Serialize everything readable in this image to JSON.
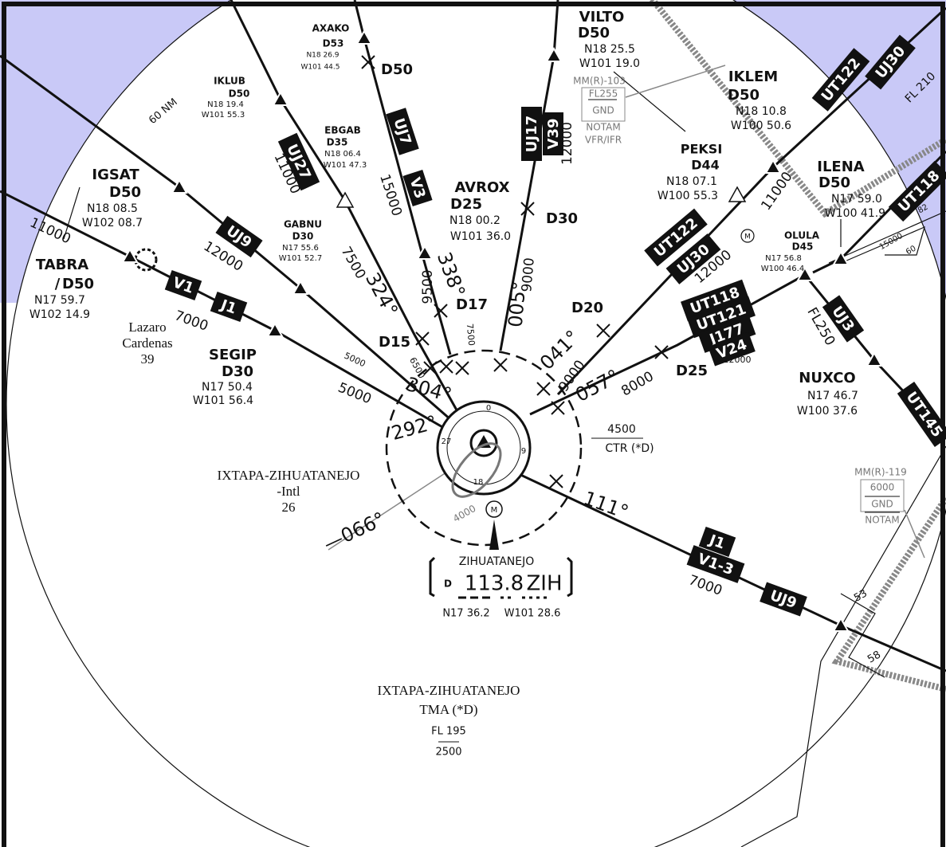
{
  "fixes": [
    {
      "name": "AXAKO",
      "dist": "D53",
      "lat": "N18 26.9",
      "lon": "W101 44.5"
    },
    {
      "name": "VILTO",
      "dist": "D50",
      "lat": "N18 25.5",
      "lon": "W101 19.0"
    },
    {
      "name": "IKLUB",
      "dist": "D50",
      "lat": "N18 19.4",
      "lon": "W101 55.3"
    },
    {
      "name": "EBGAB",
      "dist": "D35",
      "lat": "N18 06.4",
      "lon": "W101 47.3"
    },
    {
      "name": "IKLEM",
      "dist": "D50",
      "lat": "N18 10.8",
      "lon": "W100 50.6"
    },
    {
      "name": "PEKSI",
      "dist": "D44",
      "lat": "N18 07.1",
      "lon": "W100 55.3"
    },
    {
      "name": "IGSAT",
      "dist": "D50",
      "lat": "N18 08.5",
      "lon": "W102 08.7"
    },
    {
      "name": "AVROX",
      "dist": "D25",
      "lat": "N18 00.2",
      "lon": "W101 36.0"
    },
    {
      "name": "ILENA",
      "dist": "D50",
      "lat": "N17 59.0",
      "lon": "W100 41.9"
    },
    {
      "name": "GABNU",
      "dist": "D30",
      "lat": "N17 55.6",
      "lon": "W101 52.7"
    },
    {
      "name": "OLULA",
      "dist": "D45",
      "lat": "N17 56.8",
      "lon": "W100 46.4"
    },
    {
      "name": "TABRA",
      "sep": "/",
      "dist": "D50",
      "lat": "N17 59.7",
      "lon": "W102 14.9"
    },
    {
      "name": "SEGIP",
      "dist": "D30",
      "lat": "N17 50.4",
      "lon": "W101 56.4"
    },
    {
      "name": "NUXCO",
      "lat": "N17 46.7",
      "lon": "W100 37.6"
    }
  ],
  "dme_fixes": [
    "D50",
    "D30",
    "D17",
    "D15",
    "D20",
    "D25"
  ],
  "radials": [
    "338°",
    "324°",
    "304°",
    "292°",
    "005°",
    "041°",
    "057°",
    "111°",
    "—066°"
  ],
  "rose": [
    "0",
    "9",
    "18",
    "27"
  ],
  "airways": [
    "UJ30",
    "UT122",
    "UJ17",
    "V39",
    "UJ7",
    "V3",
    "UJ27",
    "UJ9",
    "V1",
    "J1",
    "UT122",
    "UJ30",
    "UT118",
    "UT121",
    "J177",
    "V24",
    "UJ3",
    "UT145",
    "UT118",
    "J1",
    "V1-3",
    "UJ9"
  ],
  "altitudes": [
    "11000",
    "15000",
    "12000",
    "11000",
    "7500",
    "9500",
    "9000",
    "12000",
    "7000",
    "5000",
    "5000",
    "6500",
    "7500",
    "9000",
    "8000",
    "12000",
    "11000",
    "12000",
    "7000",
    "FL250"
  ],
  "misc": [
    "60 NM",
    "FL 210",
    "4000",
    "53",
    "58",
    "82",
    "15000",
    "60"
  ],
  "symbols": {
    "compulsory": "M"
  },
  "airspace": {
    "mmr103": {
      "name": "MM(R)-103",
      "upper": "FL255",
      "lower": "GND",
      "notes": [
        "NOTAM",
        "VFR/IFR"
      ]
    },
    "mmr119": {
      "name": "MM(R)-119",
      "upper": "6000",
      "lower": "GND",
      "notes": [
        "NOTAM"
      ]
    },
    "ctr": {
      "upper": "4500",
      "name": "CTR (*D)"
    },
    "tma": {
      "name": "IXTAPA-ZIHUATANEJO",
      "class": "TMA (*D)",
      "upper": "FL 195",
      "lower": "2500"
    }
  },
  "airports": [
    {
      "name": "Lazaro",
      "name2": "Cardenas",
      "elev": "39"
    },
    {
      "name": "IXTAPA-ZIHUATANEJO",
      "name2": "-Intl",
      "elev": "26"
    }
  ],
  "vor": {
    "name": "ZIHUATANEJO",
    "prefix": "D",
    "freq": "113.8",
    "ident": "ZIH",
    "lat": "N17 36.2",
    "lon": "W101 28.6"
  }
}
